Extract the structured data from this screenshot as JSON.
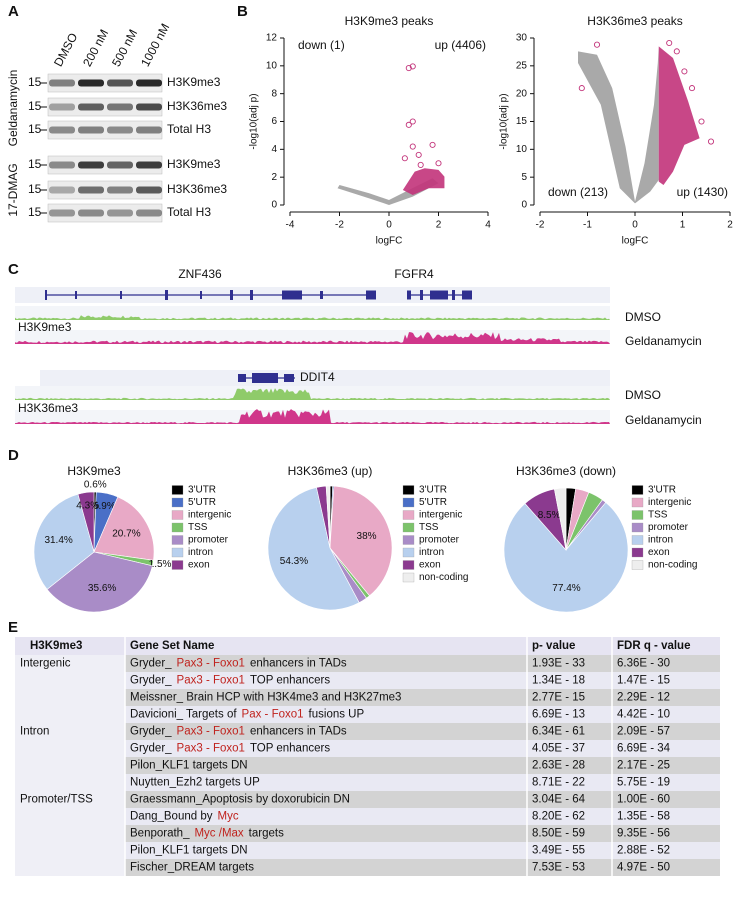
{
  "panel_labels": [
    "A",
    "B",
    "C",
    "D",
    "E"
  ],
  "blot": {
    "lanes": [
      "DMSO",
      "200 nM",
      "500 nM",
      "1000 nM"
    ],
    "treatments": [
      "Geldanamycin",
      "17-DMAG"
    ],
    "marker": "15",
    "rows": [
      "H3K9me3",
      "H3K36me3",
      "Total H3"
    ]
  },
  "chart_data": [
    {
      "type": "scatter",
      "title": "H3K9me3 peaks",
      "x_label": "logFC",
      "y_label": "-log10(adj p)",
      "xlim": [
        -4,
        4
      ],
      "xticks": [
        -4,
        -2,
        0,
        2,
        4
      ],
      "ylim": [
        0,
        12
      ],
      "yticks": [
        0,
        2,
        4,
        6,
        8,
        10,
        12
      ],
      "annotations": [
        "down (1)",
        "up (4406)"
      ],
      "annotation_position": "top",
      "colors": {
        "up": "#c2337a",
        "other": "#9a9a9a"
      }
    },
    {
      "type": "scatter",
      "title": "H3K36me3 peaks",
      "x_label": "logFC",
      "y_label": "-log10(adj p)",
      "xlim": [
        -2,
        2
      ],
      "xticks": [
        -2,
        -1,
        0,
        1,
        2
      ],
      "ylim": [
        0,
        30
      ],
      "yticks": [
        0,
        5,
        10,
        15,
        20,
        25,
        30
      ],
      "annotations": [
        "down (213)",
        "up (1430)"
      ],
      "annotation_position": "bottom",
      "colors": {
        "up": "#c2337a",
        "other": "#9a9a9a"
      }
    },
    {
      "type": "pie",
      "title": "H3K9me3",
      "categories": [
        "3'UTR",
        "5'UTR",
        "intergenic",
        "TSS",
        "promoter",
        "intron",
        "exon"
      ],
      "values": [
        0.6,
        5.9,
        20.7,
        1.5,
        35.6,
        31.4,
        4.3
      ],
      "value_labels": [
        "0.6%",
        "5.9%",
        "20.7%",
        "1.5%",
        "35.6%",
        "31.4%",
        "4.3%"
      ],
      "colors": [
        "#000000",
        "#4a6fc7",
        "#e8a9c6",
        "#7cc36b",
        "#a98cc7",
        "#b8d0ee",
        "#8b3a8f"
      ]
    },
    {
      "type": "pie",
      "title": "H3K36me3 (up)",
      "categories": [
        "3'UTR",
        "5'UTR",
        "intergenic",
        "TSS",
        "promoter",
        "intron",
        "exon",
        "non-coding"
      ],
      "values": [
        0.7,
        0.3,
        38,
        1.0,
        2.2,
        54.3,
        2.5,
        1.0
      ],
      "value_labels": [
        null,
        null,
        "38%",
        null,
        null,
        "54.3%",
        null,
        null
      ],
      "colors": [
        "#000000",
        "#4a6fc7",
        "#e8a9c6",
        "#7cc36b",
        "#a98cc7",
        "#b8d0ee",
        "#8b3a8f",
        "#eeeeee"
      ]
    },
    {
      "type": "pie",
      "title": "H3K36me3 (down)",
      "categories": [
        "3'UTR",
        "intergenic",
        "TSS",
        "promoter",
        "intron",
        "exon",
        "non-coding"
      ],
      "values": [
        2.5,
        3.5,
        4,
        1.1,
        77.4,
        8.5,
        3
      ],
      "value_labels": [
        null,
        null,
        null,
        null,
        "77.4%",
        "8.5%",
        null
      ],
      "colors": [
        "#000000",
        "#e8a9c6",
        "#7cc36b",
        "#a98cc7",
        "#b8d0ee",
        "#8b3a8f",
        "#eeeeee"
      ]
    }
  ],
  "tracks": {
    "block1": {
      "genes": [
        "ZNF436",
        "FGFR4"
      ],
      "mark": "H3K9me3",
      "conditions": [
        "DMSO",
        "Geldanamycin"
      ]
    },
    "block2": {
      "genes": [
        "DDIT4"
      ],
      "mark": "H3K36me3",
      "conditions": [
        "DMSO",
        "Geldanamycin"
      ]
    }
  },
  "table": {
    "header": [
      "H3K9me3",
      "Gene Set Name",
      "p- value",
      "FDR q - value"
    ],
    "groups": [
      {
        "label": "Intergenic",
        "rows": [
          {
            "name": [
              {
                "text": "Gryder_"
              },
              {
                "text": "Pax3 - Foxo1",
                "highlight": true
              },
              {
                "text": "enhancers in TADs"
              }
            ],
            "p": "1.93E - 33",
            "fdr": "6.36E - 30"
          },
          {
            "name": [
              {
                "text": "Gryder_"
              },
              {
                "text": "Pax3 - Foxo1",
                "highlight": true
              },
              {
                "text": "TOP enhancers"
              }
            ],
            "p": "1.34E - 18",
            "fdr": "1.47E - 15"
          },
          {
            "name": [
              {
                "text": "Meissner_ Brain HCP with H3K4me3 and H3K27me3"
              }
            ],
            "p": "2.77E - 15",
            "fdr": "2.29E - 12"
          },
          {
            "name": [
              {
                "text": "Davicioni_ Targets of"
              },
              {
                "text": "Pax - Foxo1",
                "highlight": true
              },
              {
                "text": "fusions UP"
              }
            ],
            "p": "6.69E - 13",
            "fdr": "4.42E - 10"
          }
        ]
      },
      {
        "label": "Intron",
        "rows": [
          {
            "name": [
              {
                "text": "Gryder_"
              },
              {
                "text": "Pax3 - Foxo1",
                "highlight": true
              },
              {
                "text": "enhancers in TADs"
              }
            ],
            "p": "6.34E - 61",
            "fdr": "2.09E - 57"
          },
          {
            "name": [
              {
                "text": "Gryder_"
              },
              {
                "text": "Pax3 - Foxo1",
                "highlight": true
              },
              {
                "text": "TOP enhancers"
              }
            ],
            "p": "4.05E - 37",
            "fdr": "6.69E - 34"
          },
          {
            "name": [
              {
                "text": "Pilon_KLF1 targets DN"
              }
            ],
            "p": "2.63E - 28",
            "fdr": "2.17E - 25"
          },
          {
            "name": [
              {
                "text": "Nuytten_Ezh2 targets UP"
              }
            ],
            "p": "8.71E - 22",
            "fdr": "5.75E - 19"
          }
        ]
      },
      {
        "label": "Promoter/TSS",
        "rows": [
          {
            "name": [
              {
                "text": "Graessmann_Apoptosis by doxorubicin DN"
              }
            ],
            "p": "3.04E - 64",
            "fdr": "1.00E - 60"
          },
          {
            "name": [
              {
                "text": "Dang_Bound by"
              },
              {
                "text": "Myc",
                "highlight": true
              }
            ],
            "p": "8.20E - 62",
            "fdr": "1.35E - 58"
          },
          {
            "name": [
              {
                "text": "Benporath_"
              },
              {
                "text": "Myc /Max",
                "highlight": true
              },
              {
                "text": "targets"
              }
            ],
            "p": "8.50E - 59",
            "fdr": "9.35E - 56"
          },
          {
            "name": [
              {
                "text": "Pilon_KLF1 targets DN"
              }
            ],
            "p": "3.49E - 55",
            "fdr": "2.88E - 52"
          },
          {
            "name": [
              {
                "text": "Fischer_DREAM targets"
              }
            ],
            "p": "7.53E - 53",
            "fdr": "4.97E - 50"
          }
        ]
      }
    ]
  }
}
